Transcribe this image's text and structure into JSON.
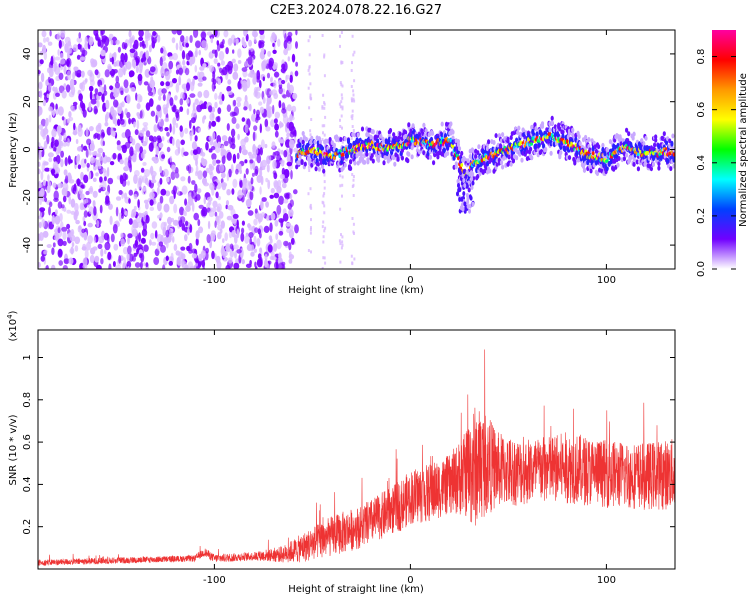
{
  "title": "C2E3.2024.078.22.16.G27",
  "colors": {
    "snr_line": "#ee3333",
    "spec_low": "#7a00ff",
    "spec_scatter": "#d9b8ff",
    "colorbar_stops": [
      "#ff00a0",
      "#ff0000",
      "#ff9900",
      "#ffff00",
      "#00ff00",
      "#00ffff",
      "#0040ff",
      "#7000ff",
      "#ffffff"
    ]
  },
  "chart_data": [
    {
      "type": "heatmap",
      "title": "",
      "xlabel": "Height of straight line (km)",
      "ylabel": "Frequency (Hz)",
      "xlim": [
        -190,
        135
      ],
      "ylim": [
        -50,
        50
      ],
      "x_ticks": [
        -100,
        0,
        100
      ],
      "y_ticks": [
        -40,
        -20,
        0,
        20,
        40
      ],
      "colorbar": {
        "label": "Normalized spectral amplitude",
        "range": [
          0.0,
          0.9
        ],
        "ticks": [
          "0.0",
          "0.2",
          "0.4",
          "0.6",
          "0.8"
        ]
      },
      "ridge": {
        "x": [
          -58,
          -50,
          -40,
          -30,
          -20,
          -10,
          0,
          10,
          20,
          25,
          28,
          32,
          40,
          50,
          60,
          70,
          80,
          90,
          100,
          110,
          120,
          130
        ],
        "y": [
          -2,
          0,
          -3,
          0,
          2,
          0,
          4,
          2,
          4,
          -5,
          -12,
          -6,
          -3,
          0,
          3,
          6,
          3,
          -2,
          -4,
          1,
          -2,
          -1
        ],
        "note_value": 0.8
      }
    },
    {
      "type": "line",
      "title": "",
      "xlabel": "Height of straight line (km)",
      "ylabel": "SNR (10 * v/v)",
      "y_exponent": "(x10",
      "y_exponent_power": "4",
      "y_exponent_close": ")",
      "xlim": [
        -190,
        135
      ],
      "ylim": [
        0,
        1.13
      ],
      "x_ticks": [
        -100,
        0,
        100
      ],
      "y_ticks": [
        0.2,
        0.4,
        0.6,
        0.8,
        1
      ],
      "series": [
        {
          "envelope_x": [
            -190,
            -150,
            -110,
            -105,
            -100,
            -80,
            -65,
            -55,
            -45,
            -35,
            -25,
            -15,
            -5,
            0,
            10,
            20,
            28,
            32,
            38,
            45,
            55,
            70,
            80,
            100,
            120,
            135
          ],
          "envelope_mean": [
            0.03,
            0.04,
            0.05,
            0.08,
            0.05,
            0.06,
            0.07,
            0.1,
            0.14,
            0.17,
            0.2,
            0.25,
            0.3,
            0.34,
            0.36,
            0.4,
            0.45,
            0.48,
            0.5,
            0.47,
            0.46,
            0.47,
            0.48,
            0.45,
            0.44,
            0.45
          ],
          "envelope_spread": [
            0.015,
            0.015,
            0.015,
            0.02,
            0.02,
            0.02,
            0.04,
            0.07,
            0.09,
            0.1,
            0.1,
            0.11,
            0.12,
            0.13,
            0.14,
            0.14,
            0.2,
            0.3,
            0.25,
            0.18,
            0.16,
            0.16,
            0.17,
            0.16,
            0.16,
            0.17
          ]
        }
      ]
    }
  ]
}
